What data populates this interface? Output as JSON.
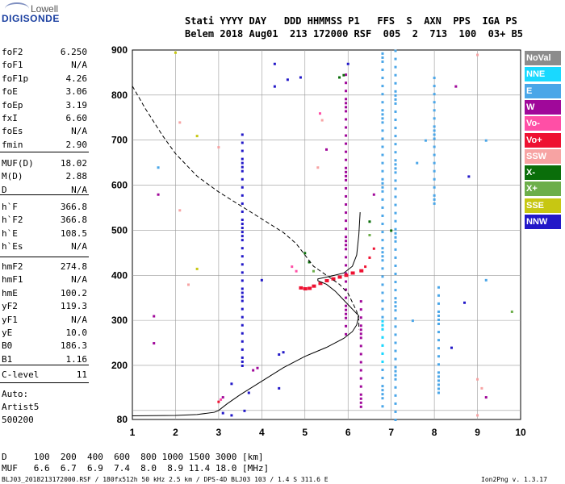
{
  "logo": {
    "top": "Lowell",
    "main": "DIGISONDE"
  },
  "header": {
    "line1": "Stati YYYY DAY   DDD HHMMSS P1   FFS  S  AXN  PPS  IGA PS",
    "line2": "Belem 2018 Aug01  213 172000 RSF  005  2  713  100  03+ B5"
  },
  "params_1": [
    {
      "name": "foF2",
      "value": "6.250"
    },
    {
      "name": "foF1",
      "value": "N/A"
    },
    {
      "name": "foF1p",
      "value": "4.26"
    },
    {
      "name": "foE",
      "value": "3.06"
    },
    {
      "name": "foEp",
      "value": "3.19"
    },
    {
      "name": "fxI",
      "value": "6.60"
    },
    {
      "name": "foEs",
      "value": "N/A"
    },
    {
      "name": "fmin",
      "value": "2.90"
    }
  ],
  "params_2": [
    {
      "name": "MUF(D)",
      "value": "18.02"
    },
    {
      "name": "M(D)",
      "value": "2.88"
    },
    {
      "name": "D",
      "value": "N/A"
    }
  ],
  "params_3": [
    {
      "name": "h`F",
      "value": "366.8"
    },
    {
      "name": "h`F2",
      "value": "366.8"
    },
    {
      "name": "h`E",
      "value": "108.5"
    },
    {
      "name": "h`Es",
      "value": "N/A"
    }
  ],
  "params_4": [
    {
      "name": "hmF2",
      "value": "274.8"
    },
    {
      "name": "hmF1",
      "value": "N/A"
    },
    {
      "name": "hmE",
      "value": "100.2"
    },
    {
      "name": "yF2",
      "value": "119.3"
    },
    {
      "name": "yF1",
      "value": "N/A"
    },
    {
      "name": "yE",
      "value": "10.0"
    },
    {
      "name": "B0",
      "value": "186.3"
    },
    {
      "name": "B1",
      "value": "1.16"
    }
  ],
  "clevel": {
    "name": "C-level",
    "value": "11"
  },
  "auto": {
    "line1": "Auto:",
    "line2": "Artist5",
    "line3": "500200"
  },
  "footer": {
    "d_row": "D     100  200  400  600  800 1000 1500 3000 [km]",
    "muf_row": "MUF   6.6  6.7  6.9  7.4  8.0  8.9 11.4 18.0 [MHz]",
    "info": "BLJ03_2018213172000.RSF / 180fx512h 50 kHz 2.5 km / DPS-4D BLJ03 103 / 1.4 S 311.6 E",
    "version": "Ion2Png v. 1.3.17"
  },
  "legend": [
    {
      "label": "NoVal",
      "color": "#8c8c8c"
    },
    {
      "label": "NNE",
      "color": "#19d9ff"
    },
    {
      "label": "E",
      "color": "#4aa6e8"
    },
    {
      "label": "W",
      "color": "#a0089a"
    },
    {
      "label": "Vo-",
      "color": "#ff4fa6"
    },
    {
      "label": "Vo+",
      "color": "#ee1131"
    },
    {
      "label": "SSW",
      "color": "#f7a3a3"
    },
    {
      "label": "X-",
      "color": "#0a6e0a"
    },
    {
      "label": "X+",
      "color": "#6cae4a"
    },
    {
      "label": "SSE",
      "color": "#c7c712"
    },
    {
      "label": "NNW",
      "color": "#2218c8"
    }
  ],
  "chart_data": {
    "type": "scatter",
    "xlim": [
      1,
      10
    ],
    "ylim": [
      80,
      900
    ],
    "x_ticks": [
      "1",
      "2",
      "3",
      "4",
      "5",
      "6",
      "7",
      "8",
      "9",
      "10"
    ],
    "y_ticks": [
      "80",
      "100",
      "200",
      "300",
      "400",
      "500",
      "600",
      "700",
      "800",
      "900"
    ],
    "grid": "on",
    "x_tick_values": [
      1,
      2,
      3,
      4,
      5,
      6,
      7,
      8,
      9,
      10
    ],
    "y_tick_values": [
      80,
      100,
      200,
      300,
      400,
      500,
      600,
      700,
      800,
      900
    ],
    "dashed_profile": [
      [
        1.0,
        820
      ],
      [
        1.3,
        770
      ],
      [
        1.7,
        710
      ],
      [
        2.0,
        670
      ],
      [
        2.5,
        620
      ],
      [
        3.0,
        585
      ],
      [
        3.5,
        555
      ],
      [
        4.0,
        525
      ],
      [
        4.5,
        495
      ],
      [
        4.8,
        470
      ],
      [
        5.0,
        445
      ],
      [
        5.2,
        420
      ],
      [
        5.5,
        400
      ],
      [
        5.8,
        380
      ],
      [
        6.0,
        360
      ],
      [
        6.1,
        340
      ],
      [
        6.2,
        320
      ],
      [
        6.25,
        300
      ],
      [
        6.25,
        280
      ]
    ],
    "solid_profile": [
      [
        1.0,
        88
      ],
      [
        2.0,
        89
      ],
      [
        2.5,
        91
      ],
      [
        2.9,
        96
      ],
      [
        3.0,
        100
      ],
      [
        3.2,
        115
      ],
      [
        3.5,
        135
      ],
      [
        4.0,
        165
      ],
      [
        4.5,
        195
      ],
      [
        5.0,
        220
      ],
      [
        5.5,
        240
      ],
      [
        5.9,
        260
      ],
      [
        6.1,
        275
      ],
      [
        6.2,
        290
      ],
      [
        6.25,
        310
      ],
      [
        6.1,
        325
      ],
      [
        5.9,
        345
      ],
      [
        5.7,
        365
      ],
      [
        5.5,
        380
      ],
      [
        5.3,
        388
      ],
      [
        5.3,
        392
      ],
      [
        5.6,
        398
      ],
      [
        5.9,
        405
      ],
      [
        6.1,
        420
      ],
      [
        6.2,
        445
      ],
      [
        6.25,
        490
      ],
      [
        6.28,
        540
      ]
    ],
    "echo_columns": [
      {
        "x": 3.55,
        "y0": 200,
        "y1": 720,
        "color": "#2218c8"
      },
      {
        "x": 5.95,
        "y0": 270,
        "y1": 850,
        "color": "#a0089a"
      },
      {
        "x": 6.3,
        "y0": 100,
        "y1": 350,
        "color": "#a0089a"
      },
      {
        "x": 6.8,
        "y0": 110,
        "y1": 900,
        "color": "#4aa6e8"
      },
      {
        "x": 7.1,
        "y0": 80,
        "y1": 900,
        "color": "#4aa6e8"
      },
      {
        "x": 8.1,
        "y0": 140,
        "y1": 390,
        "color": "#4aa6e8"
      },
      {
        "x": 8.0,
        "y0": 560,
        "y1": 840,
        "color": "#4aa6e8"
      },
      {
        "x": 6.8,
        "y0": 200,
        "y1": 300,
        "color": "#19d9ff"
      }
    ],
    "echo_points": [
      {
        "x": 1.5,
        "y": 310,
        "color": "#a0089a"
      },
      {
        "x": 1.5,
        "y": 250,
        "color": "#a0089a"
      },
      {
        "x": 1.6,
        "y": 580,
        "color": "#a0089a"
      },
      {
        "x": 1.6,
        "y": 640,
        "color": "#4aa6e8"
      },
      {
        "x": 2.0,
        "y": 895,
        "color": "#c7c712"
      },
      {
        "x": 2.1,
        "y": 545,
        "color": "#f7a3a3"
      },
      {
        "x": 2.1,
        "y": 740,
        "color": "#f7a3a3"
      },
      {
        "x": 2.3,
        "y": 380,
        "color": "#f7a3a3"
      },
      {
        "x": 2.5,
        "y": 710,
        "color": "#c7c712"
      },
      {
        "x": 2.5,
        "y": 415,
        "color": "#c7c712"
      },
      {
        "x": 3.0,
        "y": 685,
        "color": "#f7a3a3"
      },
      {
        "x": 3.0,
        "y": 120,
        "color": "#ee1131"
      },
      {
        "x": 3.05,
        "y": 125,
        "color": "#ff4fa6"
      },
      {
        "x": 3.1,
        "y": 130,
        "color": "#a0089a"
      },
      {
        "x": 3.1,
        "y": 95,
        "color": "#2218c8"
      },
      {
        "x": 3.3,
        "y": 90,
        "color": "#2218c8"
      },
      {
        "x": 3.3,
        "y": 160,
        "color": "#2218c8"
      },
      {
        "x": 3.6,
        "y": 100,
        "color": "#2218c8"
      },
      {
        "x": 3.7,
        "y": 140,
        "color": "#2218c8"
      },
      {
        "x": 3.8,
        "y": 190,
        "color": "#a0089a"
      },
      {
        "x": 3.9,
        "y": 195,
        "color": "#a0089a"
      },
      {
        "x": 4.0,
        "y": 390,
        "color": "#2218c8"
      },
      {
        "x": 4.3,
        "y": 870,
        "color": "#2218c8"
      },
      {
        "x": 4.3,
        "y": 820,
        "color": "#2218c8"
      },
      {
        "x": 4.4,
        "y": 225,
        "color": "#2218c8"
      },
      {
        "x": 4.5,
        "y": 230,
        "color": "#2218c8"
      },
      {
        "x": 4.6,
        "y": 835,
        "color": "#2218c8"
      },
      {
        "x": 4.4,
        "y": 150,
        "color": "#2218c8"
      },
      {
        "x": 4.9,
        "y": 840,
        "color": "#2218c8"
      },
      {
        "x": 5.0,
        "y": 450,
        "color": "#0a6e0a"
      },
      {
        "x": 5.1,
        "y": 430,
        "color": "#0a6e0a"
      },
      {
        "x": 5.2,
        "y": 410,
        "color": "#6cae4a"
      },
      {
        "x": 5.3,
        "y": 640,
        "color": "#f7a3a3"
      },
      {
        "x": 5.35,
        "y": 760,
        "color": "#ff4fa6"
      },
      {
        "x": 5.4,
        "y": 745,
        "color": "#f7a3a3"
      },
      {
        "x": 5.5,
        "y": 680,
        "color": "#a0089a"
      },
      {
        "x": 5.8,
        "y": 840,
        "color": "#0a6e0a"
      },
      {
        "x": 5.9,
        "y": 845,
        "color": "#0a6e0a"
      },
      {
        "x": 6.0,
        "y": 870,
        "color": "#2218c8"
      },
      {
        "x": 6.4,
        "y": 420,
        "color": "#ee1131"
      },
      {
        "x": 6.5,
        "y": 440,
        "color": "#ee1131"
      },
      {
        "x": 6.6,
        "y": 460,
        "color": "#ee1131"
      },
      {
        "x": 6.5,
        "y": 520,
        "color": "#0a6e0a"
      },
      {
        "x": 6.5,
        "y": 490,
        "color": "#6cae4a"
      },
      {
        "x": 6.6,
        "y": 580,
        "color": "#a0089a"
      },
      {
        "x": 7.5,
        "y": 300,
        "color": "#4aa6e8"
      },
      {
        "x": 7.6,
        "y": 650,
        "color": "#4aa6e8"
      },
      {
        "x": 7.8,
        "y": 700,
        "color": "#4aa6e8"
      },
      {
        "x": 8.5,
        "y": 820,
        "color": "#a0089a"
      },
      {
        "x": 8.8,
        "y": 620,
        "color": "#2218c8"
      },
      {
        "x": 8.7,
        "y": 340,
        "color": "#2218c8"
      },
      {
        "x": 9.0,
        "y": 890,
        "color": "#f7a3a3"
      },
      {
        "x": 9.2,
        "y": 700,
        "color": "#4aa6e8"
      },
      {
        "x": 9.2,
        "y": 390,
        "color": "#4aa6e8"
      },
      {
        "x": 9.0,
        "y": 170,
        "color": "#f7a3a3"
      },
      {
        "x": 9.1,
        "y": 150,
        "color": "#f7a3a3"
      },
      {
        "x": 9.2,
        "y": 130,
        "color": "#a0089a"
      },
      {
        "x": 9.0,
        "y": 90,
        "color": "#f7a3a3"
      },
      {
        "x": 9.8,
        "y": 320,
        "color": "#6cae4a"
      },
      {
        "x": 8.4,
        "y": 240,
        "color": "#2218c8"
      },
      {
        "x": 7.0,
        "y": 500,
        "color": "#0a6e0a"
      },
      {
        "x": 4.7,
        "y": 420,
        "color": "#ff4fa6"
      },
      {
        "x": 4.8,
        "y": 410,
        "color": "#ff4fa6"
      }
    ],
    "red_cluster": [
      {
        "x": 4.9,
        "y": 372
      },
      {
        "x": 5.0,
        "y": 370
      },
      {
        "x": 5.1,
        "y": 371
      },
      {
        "x": 5.2,
        "y": 376
      },
      {
        "x": 5.35,
        "y": 382
      },
      {
        "x": 5.5,
        "y": 388
      },
      {
        "x": 5.65,
        "y": 392
      },
      {
        "x": 5.8,
        "y": 396
      },
      {
        "x": 5.95,
        "y": 400
      },
      {
        "x": 6.1,
        "y": 405
      },
      {
        "x": 6.3,
        "y": 410
      }
    ]
  }
}
